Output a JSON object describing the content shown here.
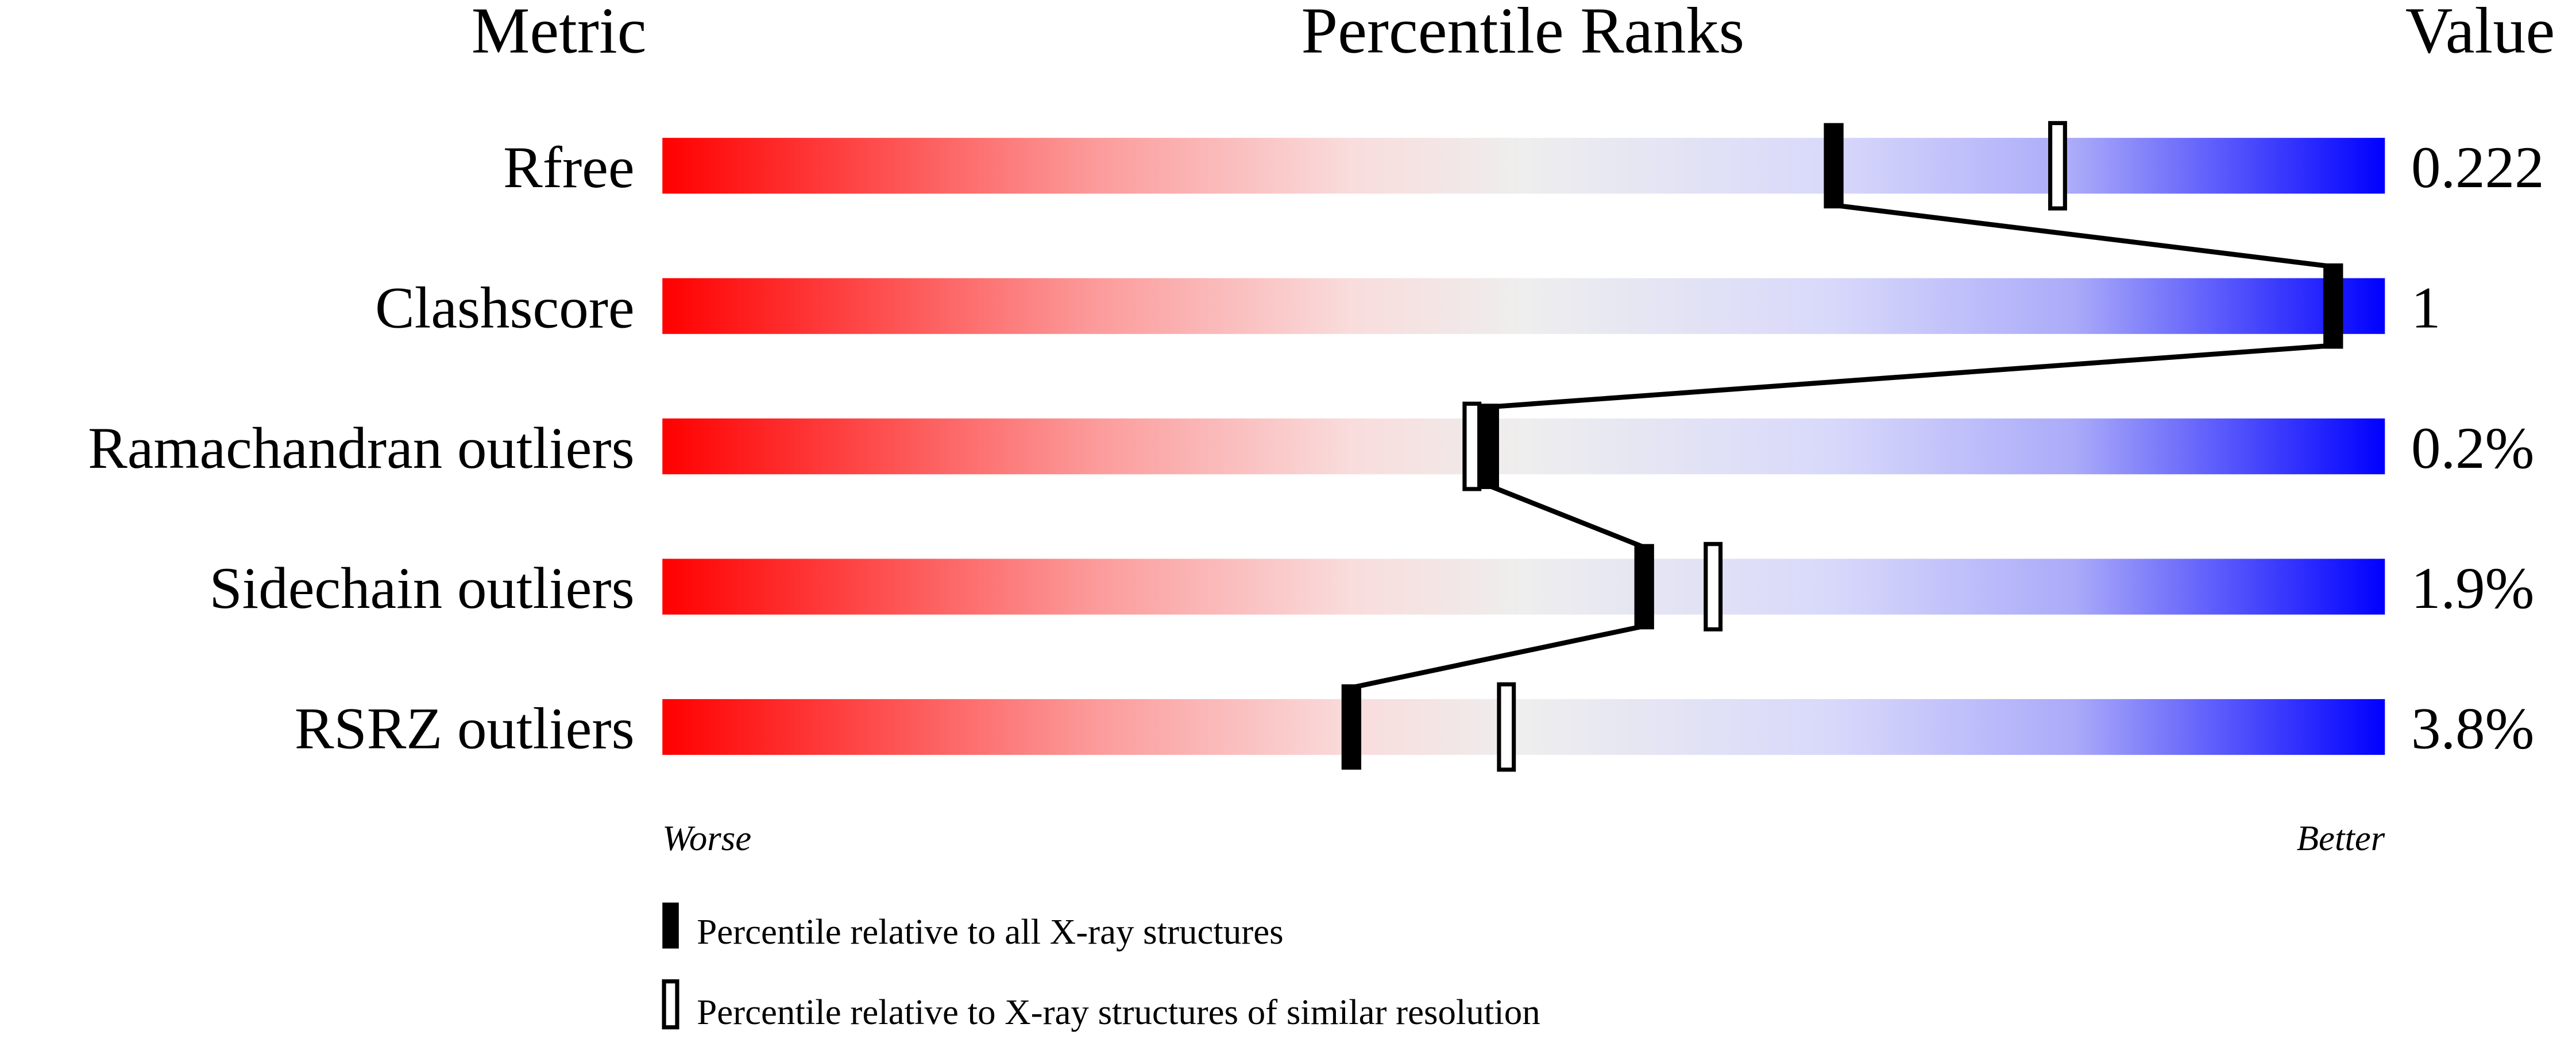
{
  "chart_data": {
    "type": "bar",
    "headers": {
      "metric": "Metric",
      "ranks": "Percentile Ranks",
      "value": "Value"
    },
    "xlim": [
      0,
      100
    ],
    "axis_labels": {
      "left": "Worse",
      "right": "Better"
    },
    "gradient_colors": [
      "#ff0000",
      "#eeeeee",
      "#0000ff"
    ],
    "categories": [
      "Rfree",
      "Clashscore",
      "Ramachandran outliers",
      "Sidechain outliers",
      "RSRZ outliers"
    ],
    "values_text": [
      "0.222",
      "1",
      "0.2%",
      "1.9%",
      "3.8%"
    ],
    "series": [
      {
        "name": "Percentile relative to all X-ray structures",
        "marker": "filled",
        "values": [
          68,
          97,
          48,
          57,
          40
        ]
      },
      {
        "name": "Percentile relative to X-ray structures of similar resolution",
        "marker": "open",
        "values": [
          81,
          null,
          47,
          61,
          49
        ]
      }
    ]
  }
}
